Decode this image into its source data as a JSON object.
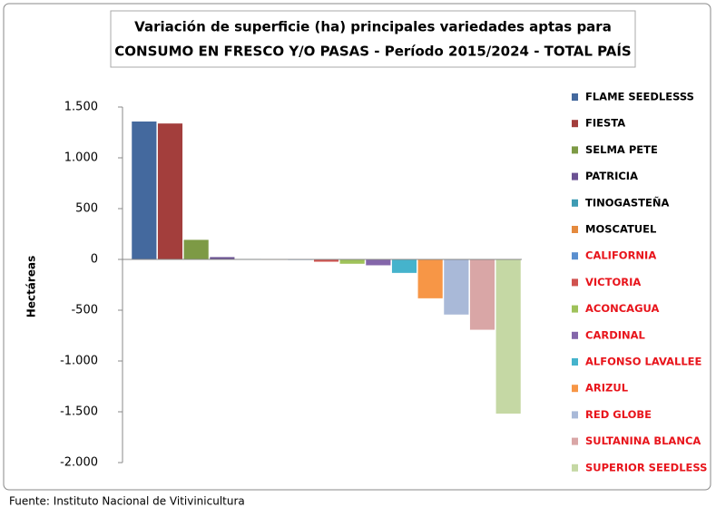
{
  "chart_data": {
    "type": "bar",
    "title": "Variación de superficie (ha) principales variedades aptas para",
    "subtitle": "CONSUMO EN FRESCO Y/O PASAS - Período 2015/2024 - TOTAL PAÍS",
    "y_label": "Hectáreas",
    "source": "Fuente: Instituto Nacional de Vitivinicultura",
    "ylim": [
      -2000,
      1500
    ],
    "yticks": [
      {
        "value": 1500,
        "label": "1.500"
      },
      {
        "value": 1000,
        "label": "1.000"
      },
      500,
      0,
      -500,
      {
        "value": -1000,
        "label": "-1.000"
      },
      {
        "value": -1500,
        "label": "-1.500"
      },
      {
        "value": -2000,
        "label": "-2.000"
      }
    ],
    "grid": false,
    "legend": "right",
    "series": [
      {
        "name": "FLAME SEEDLESSS",
        "color": "#44699e",
        "legend_label_color": "#000000",
        "values": [
          1360
        ]
      },
      {
        "name": "FIESTA",
        "color": "#a33e3c",
        "legend_label_color": "#000000",
        "values": [
          1340
        ]
      },
      {
        "name": "SELMA PETE",
        "color": "#7d9a45",
        "legend_label_color": "#000000",
        "values": [
          195
        ]
      },
      {
        "name": "PATRICIA",
        "color": "#6b5293",
        "legend_label_color": "#000000",
        "values": [
          25
        ]
      },
      {
        "name": "TINOGASTEÑA",
        "color": "#3e9bb3",
        "legend_label_color": "#000000",
        "values": [
          5
        ]
      },
      {
        "name": "MOSCATUEL",
        "color": "#e58a3e",
        "legend_label_color": "#000000",
        "values": [
          -5
        ]
      },
      {
        "name": "CALIFORNIA",
        "color": "#5a8fcf",
        "legend_label_color": "#e8141b",
        "values": [
          -8
        ]
      },
      {
        "name": "VICTORIA",
        "color": "#d0524f",
        "legend_label_color": "#e8141b",
        "values": [
          -25
        ]
      },
      {
        "name": "ACONCAGUA",
        "color": "#9fc25a",
        "legend_label_color": "#e8141b",
        "values": [
          -45
        ]
      },
      {
        "name": "CARDINAL",
        "color": "#8466aa",
        "legend_label_color": "#e8141b",
        "values": [
          -60
        ]
      },
      {
        "name": "ALFONSO LAVALLEE",
        "color": "#45b3cc",
        "legend_label_color": "#e8141b",
        "values": [
          -135
        ]
      },
      {
        "name": "ARIZUL",
        "color": "#f79646",
        "legend_label_color": "#e8141b",
        "values": [
          -385
        ]
      },
      {
        "name": "RED GLOBE",
        "color": "#a9b9d8",
        "legend_label_color": "#e8141b",
        "values": [
          -545
        ]
      },
      {
        "name": "SULTANINA BLANCA",
        "color": "#d9a6a6",
        "legend_label_color": "#e8141b",
        "values": [
          -695
        ]
      },
      {
        "name": "SUPERIOR SEEDLESS",
        "color": "#c5d8a4",
        "legend_label_color": "#e8141b",
        "values": [
          -1520
        ]
      }
    ]
  }
}
